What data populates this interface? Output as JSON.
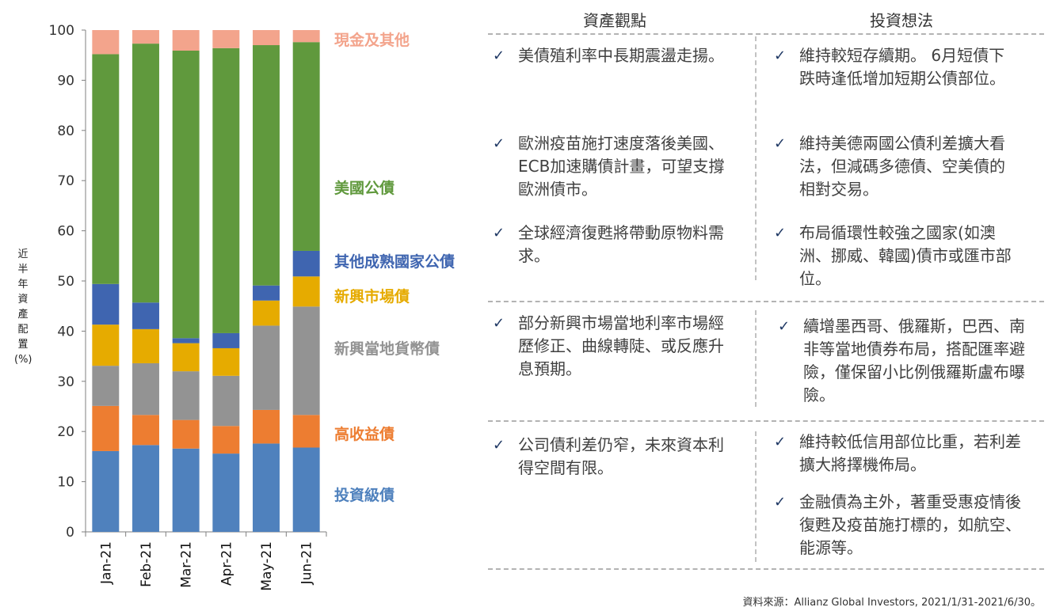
{
  "chart_data": {
    "type": "bar",
    "stacked": true,
    "categories": [
      "Jan-21",
      "Feb-21",
      "Mar-21",
      "Apr-21",
      "May-21",
      "Jun-21"
    ],
    "ylim": [
      0,
      100
    ],
    "yticks": [
      "0",
      "10",
      "20",
      "30",
      "40",
      "50",
      "60",
      "70",
      "80",
      "90",
      "100"
    ],
    "ylabel": "近半年資產配置(%)",
    "series": [
      {
        "key": "ig",
        "name": "投資級債",
        "color": "#4f81bd",
        "values": [
          16.1,
          17.3,
          16.6,
          15.6,
          17.6,
          16.8
        ]
      },
      {
        "key": "hy",
        "name": "高收益債",
        "color": "#ed7d31",
        "values": [
          9.0,
          6.0,
          5.7,
          5.5,
          6.7,
          6.5
        ]
      },
      {
        "key": "emlocal",
        "name": "新興當地貨幣債",
        "color": "#939393",
        "values": [
          8.0,
          10.3,
          9.7,
          10.0,
          16.8,
          21.6
        ]
      },
      {
        "key": "emhard",
        "name": "新興市場債",
        "color": "#e6ab00",
        "values": [
          8.2,
          6.8,
          5.6,
          5.5,
          5.0,
          6.0
        ]
      },
      {
        "key": "dm",
        "name": "其他成熟國家公債",
        "color": "#3f65b0",
        "values": [
          8.1,
          5.3,
          1.0,
          3.0,
          3.0,
          5.1
        ]
      },
      {
        "key": "ust",
        "name": "美國公債",
        "color": "#60993d",
        "values": [
          45.8,
          51.6,
          57.3,
          56.8,
          47.9,
          41.6
        ]
      },
      {
        "key": "cash",
        "name": "現金及其他",
        "color": "#f3a48c",
        "values": [
          4.8,
          2.7,
          4.1,
          3.6,
          3.0,
          2.4
        ]
      }
    ]
  },
  "legend_items": [
    {
      "key": "cash",
      "label": "現金及其他",
      "color": "#f3a48c"
    },
    {
      "key": "ust",
      "label": "美國公債",
      "color": "#60993d"
    },
    {
      "key": "dm",
      "label": "其他成熟國家公債",
      "color": "#3f65b0"
    },
    {
      "key": "emhard",
      "label": "新興市場債",
      "color": "#e6ab00"
    },
    {
      "key": "emlocal",
      "label": "新興當地貨幣債",
      "color": "#939393"
    },
    {
      "key": "hy",
      "label": "高收益債",
      "color": "#ed7d31"
    },
    {
      "key": "ig",
      "label": "投資級債",
      "color": "#4f81bd"
    }
  ],
  "table": {
    "header_left": "資產觀點",
    "header_right": "投資想法",
    "check": "✓",
    "items": {
      "r1l1": "美債殖利率中長期震盪走揚。",
      "r1r1": "維持較短存續期。 6月短債下跌時逢低增加短期公債部位。",
      "r1l2": "歐洲疫苗施打速度落後美國、ECB加速購債計畫，可望支撐歐洲債市。",
      "r1r2": "維持美德兩國公債利差擴大看法，但減碼多德債、空美債的相對交易。",
      "r1l3": "全球經濟復甦將帶動原物料需求。",
      "r1r3": "布局循環性較強之國家(如澳洲、挪威、韓國)債市或匯市部位。",
      "r2l1": "部分新興市場當地利率市場經歷修正、曲線轉陡、或反應升息預期。",
      "r2r1": "續增墨西哥、俄羅斯，巴西、南非等當地債券布局，搭配匯率避險，僅保留小比例俄羅斯盧布曝險。",
      "r3l1": "公司債利差仍窄，未來資本利得空間有限。",
      "r3r1": "維持較低信用部位比重，若利差擴大將擇機佈局。",
      "r3r2": "金融債為主外，著重受惠疫情後復甦及疫苗施打標的，如航空、能源等。"
    }
  },
  "source": "資料來源：Allianz Global Investors, 2021/1/31-2021/6/30。"
}
